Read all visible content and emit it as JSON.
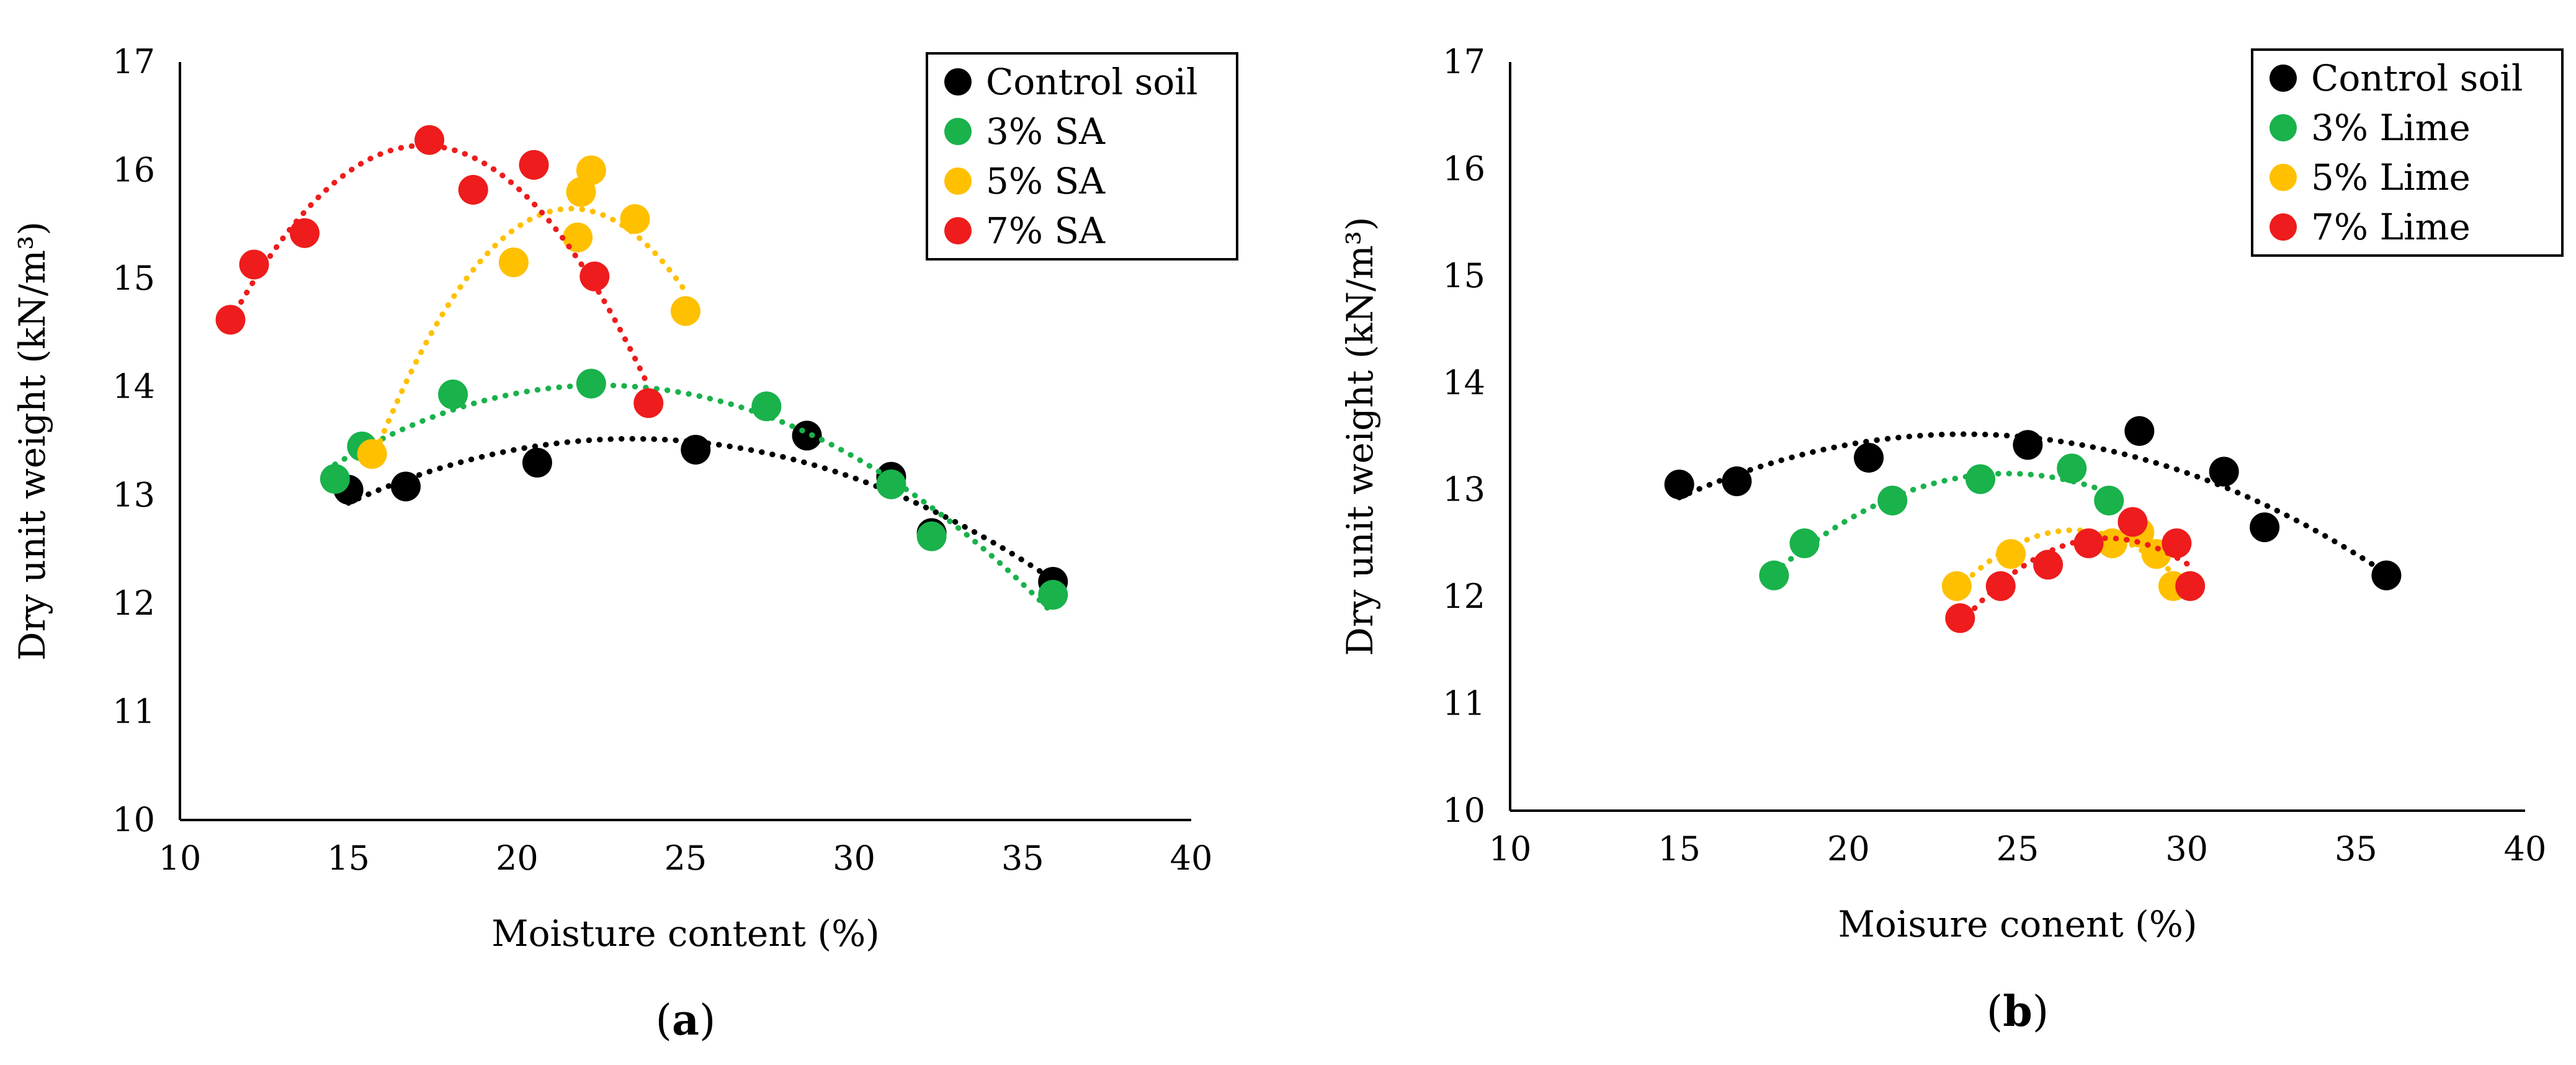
{
  "chart_data": [
    {
      "type": "scatter",
      "panel_label": "a",
      "xlabel": "Moisture content (%)",
      "ylabel": "Dry unit weight (kN/m³)",
      "xlim": [
        10,
        40
      ],
      "ylim": [
        10,
        17
      ],
      "xticks": [
        10,
        15,
        20,
        25,
        30,
        35,
        40
      ],
      "yticks": [
        10,
        11,
        12,
        13,
        14,
        15,
        16,
        17
      ],
      "grid": false,
      "trendlines": "dotted polynomial",
      "legend_position": "top-right",
      "series": [
        {
          "name": "Control soil",
          "color": "#000000",
          "x": [
            15.0,
            16.7,
            20.6,
            25.3,
            28.6,
            31.1,
            32.3,
            35.9
          ],
          "y": [
            13.05,
            13.08,
            13.3,
            13.42,
            13.55,
            13.17,
            12.65,
            12.2
          ]
        },
        {
          "name": "3% SA",
          "color": "#19b24b",
          "x": [
            14.6,
            15.4,
            18.1,
            22.2,
            27.4,
            31.1,
            32.3,
            35.9
          ],
          "y": [
            13.15,
            13.45,
            13.93,
            14.03,
            13.82,
            13.1,
            12.62,
            12.08
          ]
        },
        {
          "name": "5% SA",
          "color": "#ffc000",
          "x": [
            15.7,
            19.9,
            21.8,
            21.9,
            22.2,
            23.5,
            25.0
          ],
          "y": [
            13.38,
            15.15,
            15.38,
            15.8,
            16.0,
            15.55,
            14.7
          ]
        },
        {
          "name": "7% SA",
          "color": "#ee1c1c",
          "x": [
            11.5,
            12.2,
            13.7,
            17.4,
            18.7,
            20.5,
            22.3,
            23.9
          ],
          "y": [
            14.62,
            15.13,
            15.42,
            16.28,
            15.82,
            16.05,
            15.02,
            13.85
          ]
        }
      ]
    },
    {
      "type": "scatter",
      "panel_label": "b",
      "xlabel": "Moisure conent (%)",
      "ylabel": "Dry unit weight (kN/m³)",
      "xlim": [
        10,
        40
      ],
      "ylim": [
        10,
        17
      ],
      "xticks": [
        10,
        15,
        20,
        25,
        30,
        35,
        40
      ],
      "yticks": [
        10,
        11,
        12,
        13,
        14,
        15,
        16,
        17
      ],
      "grid": false,
      "trendlines": "dotted polynomial",
      "legend_position": "top-right",
      "series": [
        {
          "name": "Control soil",
          "color": "#000000",
          "x": [
            15.0,
            16.7,
            20.6,
            25.3,
            28.6,
            31.1,
            32.3,
            35.9
          ],
          "y": [
            13.05,
            13.08,
            13.3,
            13.42,
            13.55,
            13.17,
            12.65,
            12.2
          ]
        },
        {
          "name": "3% Lime",
          "color": "#19b24b",
          "x": [
            17.8,
            18.7,
            21.3,
            23.9,
            26.6,
            27.7
          ],
          "y": [
            12.2,
            12.5,
            12.9,
            13.1,
            13.2,
            12.9
          ]
        },
        {
          "name": "5% Lime",
          "color": "#ffc000",
          "x": [
            23.2,
            24.8,
            27.8,
            28.6,
            29.1,
            29.6
          ],
          "y": [
            12.1,
            12.4,
            12.5,
            12.6,
            12.4,
            12.1
          ]
        },
        {
          "name": "7% Lime",
          "color": "#ee1c1c",
          "x": [
            23.3,
            24.5,
            25.9,
            27.1,
            28.4,
            29.7,
            30.1
          ],
          "y": [
            11.8,
            12.1,
            12.3,
            12.5,
            12.7,
            12.5,
            12.1
          ]
        }
      ]
    }
  ]
}
